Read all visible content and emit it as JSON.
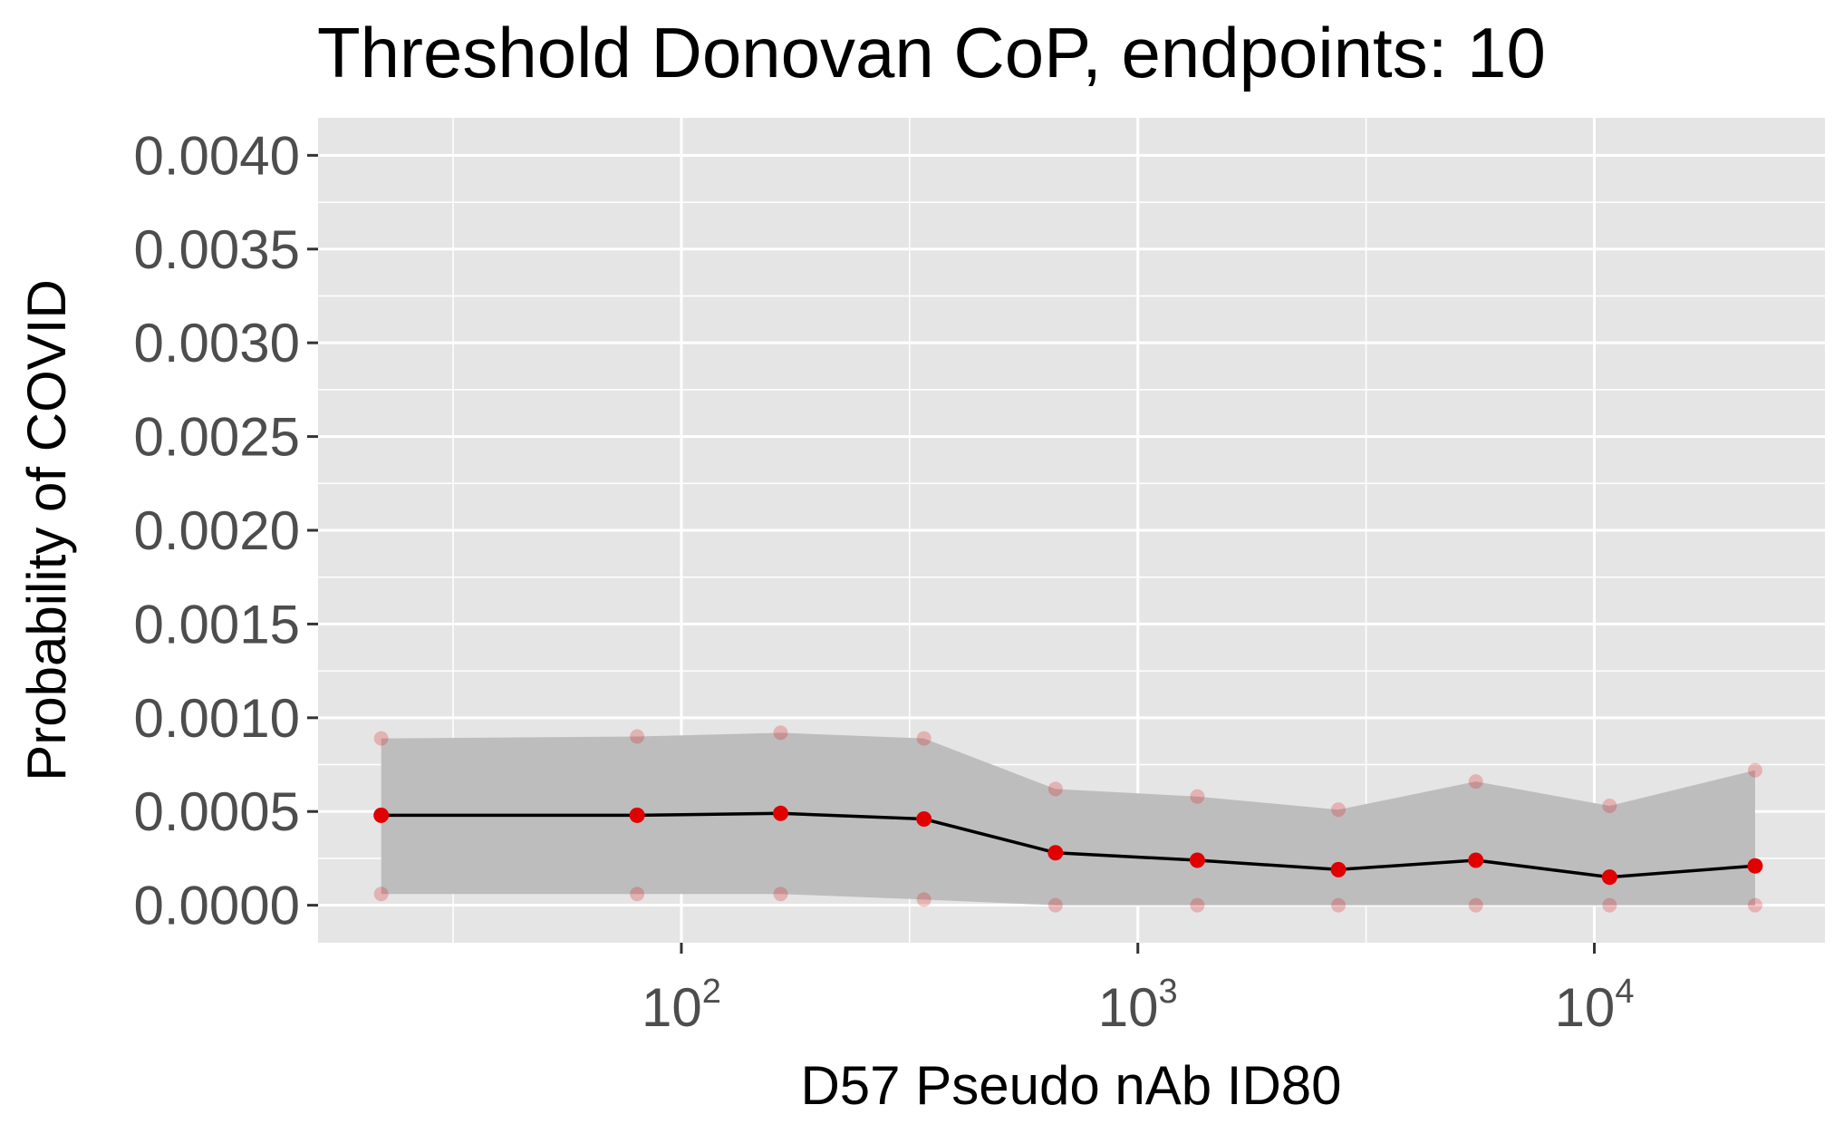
{
  "chart_data": {
    "type": "line",
    "title": "Threshold Donovan CoP, endpoints: 10",
    "xlabel": "D57 Pseudo nAb ID80",
    "ylabel": "Probability of COVID",
    "x_scale": "log10",
    "xlim": [
      16,
      32000
    ],
    "ylim": [
      -0.0002,
      0.0042
    ],
    "grid": true,
    "panel_background": "#e5e5e5",
    "x_ticks": [
      {
        "value": 100,
        "base": "10",
        "exp": "2"
      },
      {
        "value": 1000,
        "base": "10",
        "exp": "3"
      },
      {
        "value": 10000,
        "base": "10",
        "exp": "4"
      }
    ],
    "y_ticks": [
      "0.0000",
      "0.0005",
      "0.0010",
      "0.0015",
      "0.0020",
      "0.0025",
      "0.0030",
      "0.0035",
      "0.0040"
    ],
    "x": [
      22,
      80,
      165,
      340,
      660,
      1350,
      2750,
      5500,
      10800,
      22500
    ],
    "series": [
      {
        "role": "estimate",
        "values": [
          0.00048,
          0.00048,
          0.00049,
          0.00046,
          0.00028,
          0.00024,
          0.00019,
          0.00024,
          0.00015,
          0.00021
        ],
        "color": "#e00000"
      },
      {
        "role": "upper_bound",
        "values": [
          0.00089,
          0.0009,
          0.00092,
          0.00089,
          0.00062,
          0.00058,
          0.00051,
          0.00066,
          0.00053,
          0.00072
        ],
        "color": "#f4a0a0"
      },
      {
        "role": "lower_bound",
        "values": [
          6e-05,
          6e-05,
          6e-05,
          3e-05,
          0.0,
          0.0,
          0.0,
          0.0,
          0.0,
          0.0
        ],
        "color": "#f4a0a0"
      }
    ],
    "line_color": "#000000",
    "ribbon_color": "#bdbdbd"
  }
}
